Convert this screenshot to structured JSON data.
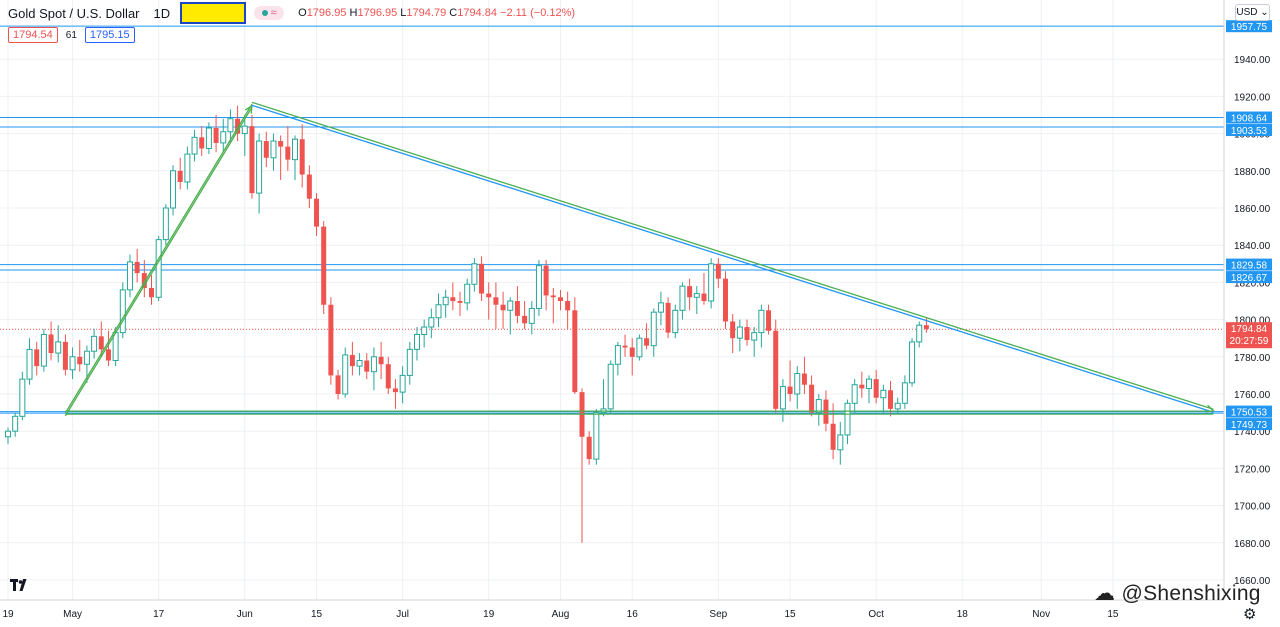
{
  "header": {
    "symbol": "Gold Spot / U.S. Dollar",
    "timeframe": "1D",
    "ohlc": {
      "o_label": "O",
      "o": "1796.95",
      "h_label": "H",
      "h": "1796.95",
      "l_label": "L",
      "l": "1794.79",
      "c_label": "C",
      "c": "1794.84",
      "change": "−2.11 (−0.12%)"
    },
    "sell_price": "1794.54",
    "spread": "61",
    "buy_price": "1795.15",
    "currency": "USD",
    "currency_icon": "chevron-down-icon",
    "highlight_color": "#ffeb00"
  },
  "watermark": "@Shenshixing",
  "colors": {
    "up": "#26a69a",
    "down": "#ef5350",
    "hline": "#2196f3",
    "trend": "#4caf50",
    "grid": "#eef0f3",
    "label_bg": "#2196f3",
    "price_tag": "#ef5350"
  },
  "chart_data": {
    "type": "candlestick",
    "title": "Gold Spot / U.S. Dollar, 1D",
    "y_range": [
      1655,
      1970
    ],
    "y_ticks": [
      1660,
      1680,
      1700,
      1720,
      1740,
      1760,
      1780,
      1800,
      1820,
      1840,
      1860,
      1880,
      1900,
      1920,
      1940
    ],
    "x_ticks": [
      {
        "label": "19",
        "bar": 0
      },
      {
        "label": "May",
        "bar": 9
      },
      {
        "label": "17",
        "bar": 21
      },
      {
        "label": "Jun",
        "bar": 33
      },
      {
        "label": "15",
        "bar": 43
      },
      {
        "label": "Jul",
        "bar": 55
      },
      {
        "label": "19",
        "bar": 67
      },
      {
        "label": "Aug",
        "bar": 77
      },
      {
        "label": "16",
        "bar": 87
      },
      {
        "label": "Sep",
        "bar": 99
      },
      {
        "label": "15",
        "bar": 109
      },
      {
        "label": "Oct",
        "bar": 121
      },
      {
        "label": "18",
        "bar": 133
      },
      {
        "label": "Nov",
        "bar": 144
      },
      {
        "label": "15",
        "bar": 154
      }
    ],
    "horizontal_levels": [
      {
        "value": 1957.75,
        "label": "1957.75"
      },
      {
        "value": 1908.64,
        "label": "1908.64"
      },
      {
        "value": 1903.53,
        "label": "1903.53"
      },
      {
        "value": 1829.58,
        "label": "1829.58"
      },
      {
        "value": 1826.67,
        "label": "1826.67"
      },
      {
        "value": 1750.53,
        "label": "1750.53"
      },
      {
        "value": 1749.73,
        "label": "1749.73"
      }
    ],
    "current_price": {
      "value": 1794.84,
      "label": "1794.84",
      "countdown": "20:27:59"
    },
    "trendlines": [
      {
        "name": "rising-trendline",
        "from": {
          "bar": 8,
          "value": 1749
        },
        "to": {
          "bar": 34,
          "value": 1915
        }
      },
      {
        "name": "descending-trendline",
        "from": {
          "bar": 34,
          "value": 1916
        },
        "to": {
          "bar": 168,
          "value": 1751
        }
      },
      {
        "name": "support-line",
        "from": {
          "bar": 8,
          "value": 1750
        },
        "to": {
          "bar": 168,
          "value": 1750
        }
      }
    ],
    "candles": [
      [
        1737,
        1742,
        1733,
        1740
      ],
      [
        1740,
        1750,
        1737,
        1748
      ],
      [
        1748,
        1772,
        1746,
        1768
      ],
      [
        1768,
        1790,
        1765,
        1784
      ],
      [
        1784,
        1788,
        1770,
        1775
      ],
      [
        1775,
        1795,
        1772,
        1792
      ],
      [
        1792,
        1799,
        1778,
        1782
      ],
      [
        1782,
        1797,
        1777,
        1788
      ],
      [
        1788,
        1792,
        1770,
        1773
      ],
      [
        1773,
        1785,
        1768,
        1780
      ],
      [
        1780,
        1789,
        1772,
        1776
      ],
      [
        1776,
        1786,
        1766,
        1783
      ],
      [
        1783,
        1795,
        1779,
        1791
      ],
      [
        1791,
        1799,
        1780,
        1784
      ],
      [
        1784,
        1794,
        1775,
        1778
      ],
      [
        1778,
        1796,
        1775,
        1793
      ],
      [
        1793,
        1820,
        1790,
        1816
      ],
      [
        1816,
        1835,
        1812,
        1831
      ],
      [
        1831,
        1838,
        1820,
        1825
      ],
      [
        1825,
        1832,
        1812,
        1817
      ],
      [
        1817,
        1824,
        1808,
        1812
      ],
      [
        1812,
        1845,
        1810,
        1843
      ],
      [
        1843,
        1862,
        1840,
        1860
      ],
      [
        1860,
        1883,
        1856,
        1880
      ],
      [
        1880,
        1887,
        1870,
        1874
      ],
      [
        1874,
        1893,
        1870,
        1889
      ],
      [
        1889,
        1902,
        1885,
        1898
      ],
      [
        1898,
        1904,
        1888,
        1892
      ],
      [
        1892,
        1906,
        1889,
        1903
      ],
      [
        1903,
        1910,
        1890,
        1895
      ],
      [
        1895,
        1908,
        1890,
        1901
      ],
      [
        1901,
        1913,
        1895,
        1908
      ],
      [
        1908,
        1915,
        1896,
        1900
      ],
      [
        1900,
        1910,
        1888,
        1904
      ],
      [
        1904,
        1910,
        1865,
        1868
      ],
      [
        1868,
        1900,
        1857,
        1896
      ],
      [
        1896,
        1901,
        1882,
        1887
      ],
      [
        1887,
        1900,
        1880,
        1896
      ],
      [
        1896,
        1899,
        1875,
        1893
      ],
      [
        1893,
        1904,
        1880,
        1886
      ],
      [
        1886,
        1899,
        1875,
        1897
      ],
      [
        1897,
        1905,
        1871,
        1878
      ],
      [
        1878,
        1883,
        1860,
        1865
      ],
      [
        1865,
        1868,
        1845,
        1850
      ],
      [
        1850,
        1853,
        1803,
        1808
      ],
      [
        1808,
        1812,
        1765,
        1770
      ],
      [
        1770,
        1773,
        1757,
        1760
      ],
      [
        1760,
        1785,
        1758,
        1781
      ],
      [
        1781,
        1788,
        1770,
        1775
      ],
      [
        1775,
        1782,
        1770,
        1778
      ],
      [
        1778,
        1782,
        1768,
        1772
      ],
      [
        1772,
        1785,
        1762,
        1780
      ],
      [
        1780,
        1788,
        1768,
        1776
      ],
      [
        1776,
        1780,
        1760,
        1763
      ],
      [
        1763,
        1768,
        1752,
        1761
      ],
      [
        1761,
        1775,
        1755,
        1770
      ],
      [
        1770,
        1788,
        1765,
        1784
      ],
      [
        1784,
        1796,
        1778,
        1792
      ],
      [
        1792,
        1800,
        1785,
        1796
      ],
      [
        1796,
        1806,
        1790,
        1801
      ],
      [
        1801,
        1814,
        1796,
        1808
      ],
      [
        1808,
        1816,
        1801,
        1812
      ],
      [
        1812,
        1820,
        1805,
        1810
      ],
      [
        1810,
        1815,
        1802,
        1809
      ],
      [
        1809,
        1822,
        1805,
        1819
      ],
      [
        1819,
        1833,
        1815,
        1830
      ],
      [
        1830,
        1834,
        1810,
        1814
      ],
      [
        1814,
        1820,
        1800,
        1812
      ],
      [
        1812,
        1820,
        1795,
        1808
      ],
      [
        1808,
        1815,
        1795,
        1805
      ],
      [
        1805,
        1812,
        1792,
        1810
      ],
      [
        1810,
        1818,
        1798,
        1802
      ],
      [
        1802,
        1810,
        1795,
        1798
      ],
      [
        1798,
        1810,
        1792,
        1806
      ],
      [
        1806,
        1832,
        1802,
        1829
      ],
      [
        1829,
        1832,
        1805,
        1813
      ],
      [
        1813,
        1817,
        1798,
        1812
      ],
      [
        1812,
        1816,
        1805,
        1810
      ],
      [
        1810,
        1815,
        1795,
        1805
      ],
      [
        1805,
        1812,
        1760,
        1761
      ],
      [
        1761,
        1763,
        1680,
        1737
      ],
      [
        1737,
        1740,
        1722,
        1725
      ],
      [
        1725,
        1752,
        1722,
        1750
      ],
      [
        1750,
        1768,
        1748,
        1752
      ],
      [
        1752,
        1778,
        1750,
        1776
      ],
      [
        1776,
        1788,
        1770,
        1786
      ],
      [
        1786,
        1792,
        1780,
        1785
      ],
      [
        1785,
        1790,
        1770,
        1780
      ],
      [
        1780,
        1792,
        1778,
        1790
      ],
      [
        1790,
        1798,
        1784,
        1786
      ],
      [
        1786,
        1806,
        1780,
        1804
      ],
      [
        1804,
        1815,
        1797,
        1809
      ],
      [
        1809,
        1812,
        1790,
        1793
      ],
      [
        1793,
        1808,
        1790,
        1805
      ],
      [
        1805,
        1820,
        1800,
        1818
      ],
      [
        1818,
        1822,
        1805,
        1812
      ],
      [
        1812,
        1818,
        1803,
        1814
      ],
      [
        1814,
        1825,
        1808,
        1810
      ],
      [
        1810,
        1833,
        1806,
        1830
      ],
      [
        1830,
        1833,
        1817,
        1822
      ],
      [
        1822,
        1826,
        1795,
        1799
      ],
      [
        1799,
        1803,
        1782,
        1790
      ],
      [
        1790,
        1800,
        1783,
        1796
      ],
      [
        1796,
        1800,
        1786,
        1789
      ],
      [
        1789,
        1796,
        1780,
        1793
      ],
      [
        1793,
        1808,
        1785,
        1805
      ],
      [
        1805,
        1808,
        1792,
        1794
      ],
      [
        1794,
        1800,
        1750,
        1752
      ],
      [
        1752,
        1768,
        1745,
        1764
      ],
      [
        1764,
        1778,
        1756,
        1760
      ],
      [
        1760,
        1775,
        1752,
        1771
      ],
      [
        1771,
        1780,
        1760,
        1765
      ],
      [
        1765,
        1770,
        1748,
        1750
      ],
      [
        1750,
        1760,
        1743,
        1757
      ],
      [
        1757,
        1762,
        1740,
        1744
      ],
      [
        1744,
        1755,
        1725,
        1730
      ],
      [
        1730,
        1745,
        1722,
        1738
      ],
      [
        1738,
        1757,
        1733,
        1755
      ],
      [
        1755,
        1768,
        1750,
        1765
      ],
      [
        1765,
        1772,
        1758,
        1763
      ],
      [
        1763,
        1770,
        1755,
        1768
      ],
      [
        1768,
        1773,
        1755,
        1758
      ],
      [
        1758,
        1765,
        1750,
        1762
      ],
      [
        1762,
        1767,
        1748,
        1752
      ],
      [
        1752,
        1758,
        1749,
        1755
      ],
      [
        1755,
        1770,
        1752,
        1766
      ],
      [
        1766,
        1790,
        1764,
        1788
      ],
      [
        1788,
        1799,
        1785,
        1797
      ],
      [
        1797,
        1801,
        1793,
        1795
      ]
    ]
  }
}
